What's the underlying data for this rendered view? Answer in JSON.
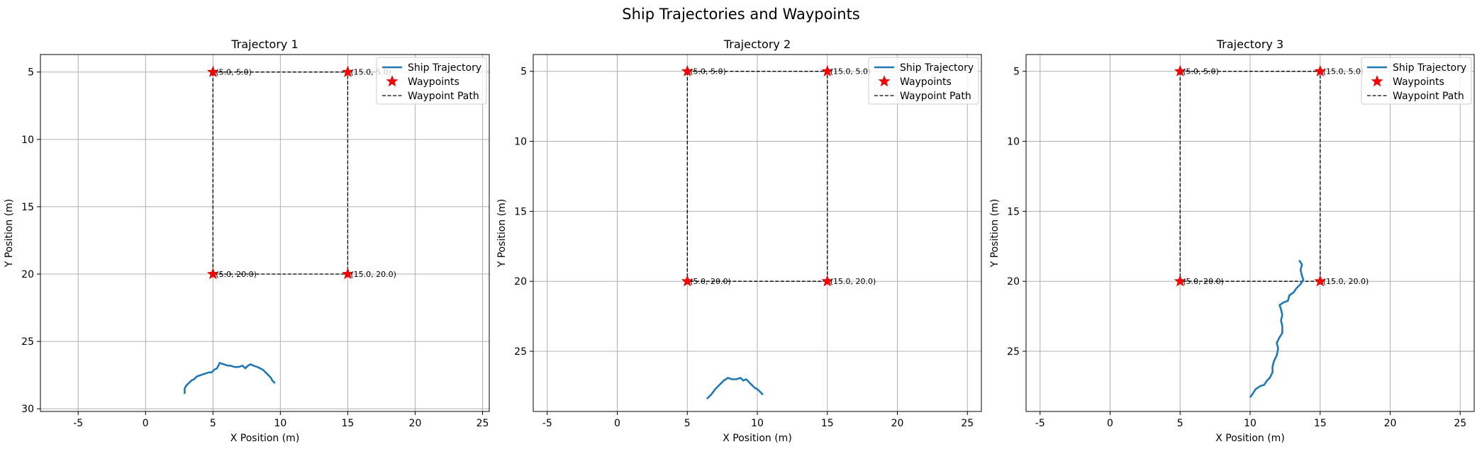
{
  "figure": {
    "title": "Ship Trajectories and Waypoints"
  },
  "colors": {
    "trajectory": "#1f77b4",
    "waypoint": "#ff0000",
    "path": "#000000",
    "grid": "#b0b0b0"
  },
  "legend": {
    "trajectory": "Ship Trajectory",
    "waypoints": "Waypoints",
    "path": "Waypoint Path"
  },
  "chart_data": [
    {
      "type": "line",
      "title": "Trajectory 1",
      "xlabel": "X Position (m)",
      "ylabel": "Y Position (m)",
      "xlim": [
        -7.8,
        25.5
      ],
      "ylim": [
        30.2,
        3.7
      ],
      "y_inverted": true,
      "xticks": [
        -5,
        0,
        5,
        10,
        15,
        20,
        25
      ],
      "yticks": [
        5,
        10,
        15,
        20,
        25,
        30
      ],
      "grid": true,
      "legend_position": "upper right",
      "waypoints": [
        {
          "x": 5.0,
          "y": 5.0,
          "label": "(5.0, 5.0)"
        },
        {
          "x": 15.0,
          "y": 5.0,
          "label": "(15.0, 5.0)"
        },
        {
          "x": 15.0,
          "y": 20.0,
          "label": "(15.0, 20.0)"
        },
        {
          "x": 5.0,
          "y": 20.0,
          "label": "(5.0, 20.0)"
        }
      ],
      "waypoint_path": [
        [
          5,
          5
        ],
        [
          15,
          5
        ],
        [
          15,
          20
        ],
        [
          5,
          20
        ],
        [
          5,
          5
        ]
      ],
      "trajectory": [
        [
          2.9,
          28.9
        ],
        [
          2.9,
          28.5
        ],
        [
          3.0,
          28.3
        ],
        [
          3.2,
          28.1
        ],
        [
          3.4,
          27.9
        ],
        [
          3.6,
          27.8
        ],
        [
          3.8,
          27.6
        ],
        [
          4.1,
          27.5
        ],
        [
          4.4,
          27.4
        ],
        [
          4.7,
          27.3
        ],
        [
          4.9,
          27.3
        ],
        [
          5.1,
          27.1
        ],
        [
          5.3,
          27.0
        ],
        [
          5.4,
          26.8
        ],
        [
          5.5,
          26.6
        ],
        [
          5.8,
          26.7
        ],
        [
          6.1,
          26.8
        ],
        [
          6.3,
          26.8
        ],
        [
          6.6,
          26.9
        ],
        [
          6.9,
          26.9
        ],
        [
          7.2,
          26.8
        ],
        [
          7.4,
          27.0
        ],
        [
          7.6,
          26.8
        ],
        [
          7.8,
          26.7
        ],
        [
          8.0,
          26.8
        ],
        [
          8.3,
          26.9
        ],
        [
          8.5,
          27.0
        ],
        [
          8.7,
          27.1
        ],
        [
          8.9,
          27.3
        ],
        [
          9.1,
          27.5
        ],
        [
          9.3,
          27.7
        ],
        [
          9.4,
          27.9
        ],
        [
          9.6,
          28.1
        ]
      ]
    },
    {
      "type": "line",
      "title": "Trajectory 2",
      "xlabel": "X Position (m)",
      "ylabel": "Y Position (m)",
      "xlim": [
        -6.0,
        26.0
      ],
      "ylim": [
        29.3,
        3.8
      ],
      "y_inverted": true,
      "xticks": [
        -5,
        0,
        5,
        10,
        15,
        20,
        25
      ],
      "yticks": [
        5,
        10,
        15,
        20,
        25
      ],
      "grid": true,
      "legend_position": "upper right",
      "waypoints": [
        {
          "x": 5.0,
          "y": 5.0,
          "label": "(5.0, 5.0)"
        },
        {
          "x": 15.0,
          "y": 5.0,
          "label": "(15.0, 5.0)"
        },
        {
          "x": 15.0,
          "y": 20.0,
          "label": "(15.0, 20.0)"
        },
        {
          "x": 5.0,
          "y": 20.0,
          "label": "(5.0, 20.0)"
        }
      ],
      "waypoint_path": [
        [
          5,
          5
        ],
        [
          15,
          5
        ],
        [
          15,
          20
        ],
        [
          5,
          20
        ],
        [
          5,
          5
        ]
      ],
      "trajectory": [
        [
          6.4,
          28.4
        ],
        [
          6.7,
          28.1
        ],
        [
          7.0,
          27.7
        ],
        [
          7.3,
          27.4
        ],
        [
          7.6,
          27.1
        ],
        [
          7.9,
          26.9
        ],
        [
          8.2,
          27.0
        ],
        [
          8.5,
          27.0
        ],
        [
          8.8,
          26.9
        ],
        [
          9.0,
          27.1
        ],
        [
          9.2,
          27.0
        ],
        [
          9.4,
          27.2
        ],
        [
          9.6,
          27.4
        ],
        [
          9.8,
          27.6
        ],
        [
          10.0,
          27.7
        ],
        [
          10.2,
          27.9
        ],
        [
          10.4,
          28.1
        ]
      ]
    },
    {
      "type": "line",
      "title": "Trajectory 3",
      "xlabel": "X Position (m)",
      "ylabel": "Y Position (m)",
      "xlim": [
        -6.0,
        26.0
      ],
      "ylim": [
        29.3,
        3.8
      ],
      "y_inverted": true,
      "xticks": [
        -5,
        0,
        5,
        10,
        15,
        20,
        25
      ],
      "yticks": [
        5,
        10,
        15,
        20,
        25
      ],
      "grid": true,
      "legend_position": "upper right",
      "waypoints": [
        {
          "x": 5.0,
          "y": 5.0,
          "label": "(5.0, 5.0)"
        },
        {
          "x": 15.0,
          "y": 5.0,
          "label": "(15.0, 5.0)"
        },
        {
          "x": 15.0,
          "y": 20.0,
          "label": "(15.0, 20.0)"
        },
        {
          "x": 5.0,
          "y": 20.0,
          "label": "(5.0, 20.0)"
        }
      ],
      "waypoint_path": [
        [
          5,
          5
        ],
        [
          15,
          5
        ],
        [
          15,
          20
        ],
        [
          5,
          20
        ],
        [
          5,
          5
        ]
      ],
      "trajectory": [
        [
          10.0,
          28.3
        ],
        [
          10.2,
          28.0
        ],
        [
          10.4,
          27.7
        ],
        [
          10.7,
          27.5
        ],
        [
          11.0,
          27.4
        ],
        [
          11.2,
          27.1
        ],
        [
          11.4,
          26.9
        ],
        [
          11.6,
          26.5
        ],
        [
          11.6,
          26.1
        ],
        [
          11.7,
          25.7
        ],
        [
          11.9,
          25.3
        ],
        [
          12.0,
          24.8
        ],
        [
          11.9,
          24.4
        ],
        [
          12.1,
          24.0
        ],
        [
          12.3,
          23.7
        ],
        [
          12.3,
          23.2
        ],
        [
          12.2,
          22.8
        ],
        [
          12.3,
          22.4
        ],
        [
          12.2,
          22.0
        ],
        [
          12.1,
          21.7
        ],
        [
          12.4,
          21.5
        ],
        [
          12.7,
          21.4
        ],
        [
          12.8,
          21.0
        ],
        [
          13.1,
          20.8
        ],
        [
          13.3,
          20.5
        ],
        [
          13.6,
          20.2
        ],
        [
          13.8,
          19.9
        ],
        [
          13.7,
          19.6
        ],
        [
          13.6,
          19.2
        ],
        [
          13.7,
          18.8
        ],
        [
          13.5,
          18.5
        ]
      ]
    }
  ]
}
